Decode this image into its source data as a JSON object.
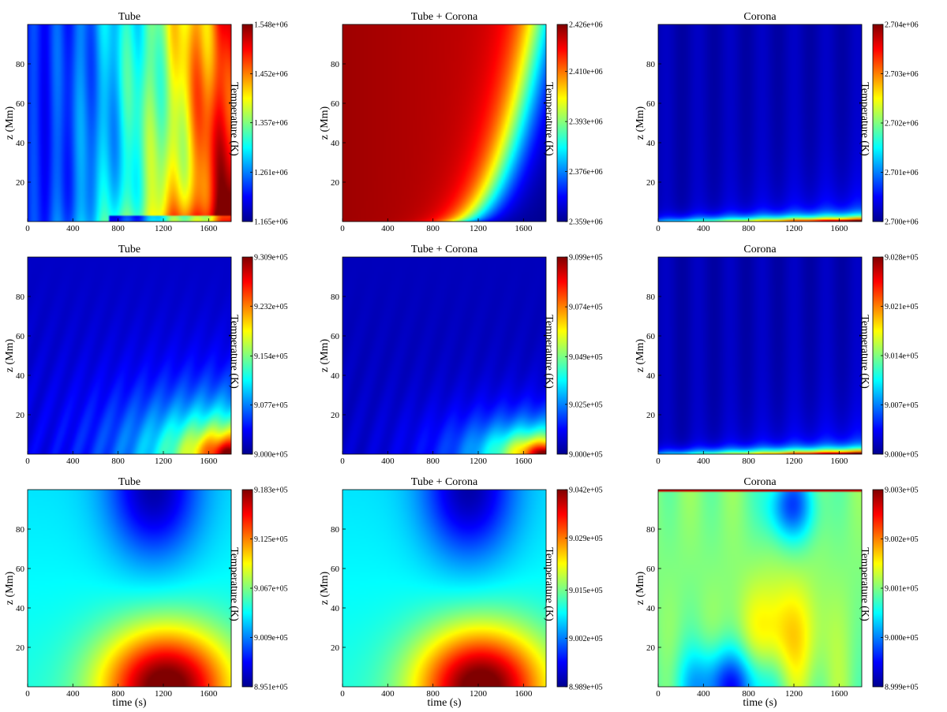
{
  "colormap": [
    "#00008f",
    "#0000ff",
    "#00ffff",
    "#ffff00",
    "#ff0000",
    "#800000"
  ],
  "chart_data": [
    {
      "type": "heatmap",
      "title": "Tube",
      "xlabel": "",
      "ylabel": "z (Mm)",
      "colorbar_label": "Temperature (K)",
      "xlim": [
        0,
        1800
      ],
      "ylim": [
        0,
        100
      ],
      "x_ticks": [
        "0",
        "400",
        "800",
        "1200",
        "1600"
      ],
      "y_ticks": [
        "20",
        "40",
        "60",
        "80"
      ],
      "clim": [
        1165000,
        1548000
      ],
      "colorbar_ticks": [
        "1.165e+06",
        "1.261e+06",
        "1.357e+06",
        "1.452e+06",
        "1.548e+06"
      ],
      "pattern": "tube_heating"
    },
    {
      "type": "heatmap",
      "title": "Tube + Corona",
      "xlabel": "",
      "ylabel": "z (Mm)",
      "colorbar_label": "Temperature (K)",
      "xlim": [
        0,
        1800
      ],
      "ylim": [
        0,
        100
      ],
      "x_ticks": [
        "0",
        "400",
        "800",
        "1200",
        "1600"
      ],
      "y_ticks": [
        "20",
        "40",
        "60",
        "80"
      ],
      "clim": [
        2359000,
        2426000
      ],
      "colorbar_ticks": [
        "2.359e+06",
        "2.376e+06",
        "2.393e+06",
        "2.410e+06",
        "2.426e+06"
      ],
      "pattern": "cooling_front"
    },
    {
      "type": "heatmap",
      "title": "Corona",
      "xlabel": "",
      "ylabel": "z (Mm)",
      "colorbar_label": "Temperature (K)",
      "xlim": [
        0,
        1800
      ],
      "ylim": [
        0,
        100
      ],
      "x_ticks": [
        "0",
        "400",
        "800",
        "1200",
        "1600"
      ],
      "y_ticks": [
        "20",
        "40",
        "60",
        "80"
      ],
      "clim": [
        2700000,
        2704000
      ],
      "colorbar_ticks": [
        "2.700e+06",
        "2.701e+06",
        "2.702e+06",
        "2.703e+06",
        "2.704e+06"
      ],
      "pattern": "bottom_strip"
    },
    {
      "type": "heatmap",
      "title": "Tube",
      "xlabel": "",
      "ylabel": "z (Mm)",
      "colorbar_label": "Temperature (K)",
      "xlim": [
        0,
        1800
      ],
      "ylim": [
        0,
        100
      ],
      "x_ticks": [
        "0",
        "400",
        "800",
        "1200",
        "1600"
      ],
      "y_ticks": [
        "20",
        "40",
        "60",
        "80"
      ],
      "clim": [
        900000,
        930900
      ],
      "colorbar_ticks": [
        "9.000e+05",
        "9.077e+05",
        "9.154e+05",
        "9.232e+05",
        "9.309e+05"
      ],
      "pattern": "corner_glow"
    },
    {
      "type": "heatmap",
      "title": "Tube + Corona",
      "xlabel": "",
      "ylabel": "z (Mm)",
      "colorbar_label": "Temperature (K)",
      "xlim": [
        0,
        1800
      ],
      "ylim": [
        0,
        100
      ],
      "x_ticks": [
        "0",
        "400",
        "800",
        "1200",
        "1600"
      ],
      "y_ticks": [
        "20",
        "40",
        "60",
        "80"
      ],
      "clim": [
        900000,
        909900
      ],
      "colorbar_ticks": [
        "9.000e+05",
        "9.025e+05",
        "9.049e+05",
        "9.074e+05",
        "9.099e+05"
      ],
      "pattern": "corner_glow_small"
    },
    {
      "type": "heatmap",
      "title": "Corona",
      "xlabel": "",
      "ylabel": "z (Mm)",
      "colorbar_label": "Temperature (K)",
      "xlim": [
        0,
        1800
      ],
      "ylim": [
        0,
        100
      ],
      "x_ticks": [
        "0",
        "400",
        "800",
        "1200",
        "1600"
      ],
      "y_ticks": [
        "20",
        "40",
        "60",
        "80"
      ],
      "clim": [
        900000,
        902800
      ],
      "colorbar_ticks": [
        "9.000e+05",
        "9.007e+05",
        "9.014e+05",
        "9.021e+05",
        "9.028e+05"
      ],
      "pattern": "bottom_strip"
    },
    {
      "type": "heatmap",
      "title": "Tube",
      "xlabel": "time (s)",
      "ylabel": "z (Mm)",
      "colorbar_label": "Temperature (K)",
      "xlim": [
        0,
        1800
      ],
      "ylim": [
        0,
        100
      ],
      "x_ticks": [
        "0",
        "400",
        "800",
        "1200",
        "1600"
      ],
      "y_ticks": [
        "20",
        "40",
        "60",
        "80"
      ],
      "clim": [
        895100,
        918300
      ],
      "colorbar_ticks": [
        "8.951e+05",
        "9.009e+05",
        "9.067e+05",
        "9.125e+05",
        "9.183e+05"
      ],
      "pattern": "hot_bottom_cold_top"
    },
    {
      "type": "heatmap",
      "title": "Tube + Corona",
      "xlabel": "time (s)",
      "ylabel": "z (Mm)",
      "colorbar_label": "Temperature (K)",
      "xlim": [
        0,
        1800
      ],
      "ylim": [
        0,
        100
      ],
      "x_ticks": [
        "0",
        "400",
        "800",
        "1200",
        "1600"
      ],
      "y_ticks": [
        "20",
        "40",
        "60",
        "80"
      ],
      "clim": [
        898900,
        904200
      ],
      "colorbar_ticks": [
        "8.989e+05",
        "9.002e+05",
        "9.015e+05",
        "9.029e+05",
        "9.042e+05"
      ],
      "pattern": "hot_bottom_cold_top"
    },
    {
      "type": "heatmap",
      "title": "Corona",
      "xlabel": "time (s)",
      "ylabel": "z (Mm)",
      "colorbar_label": "Temperature (K)",
      "xlim": [
        0,
        1800
      ],
      "ylim": [
        0,
        100
      ],
      "x_ticks": [
        "0",
        "400",
        "800",
        "1200",
        "1600"
      ],
      "y_ticks": [
        "20",
        "40",
        "60",
        "80"
      ],
      "clim": [
        899900,
        900300
      ],
      "colorbar_ticks": [
        "8.999e+05",
        "9.000e+05",
        "9.001e+05",
        "9.002e+05",
        "9.003e+05"
      ],
      "pattern": "corona_wave"
    }
  ]
}
